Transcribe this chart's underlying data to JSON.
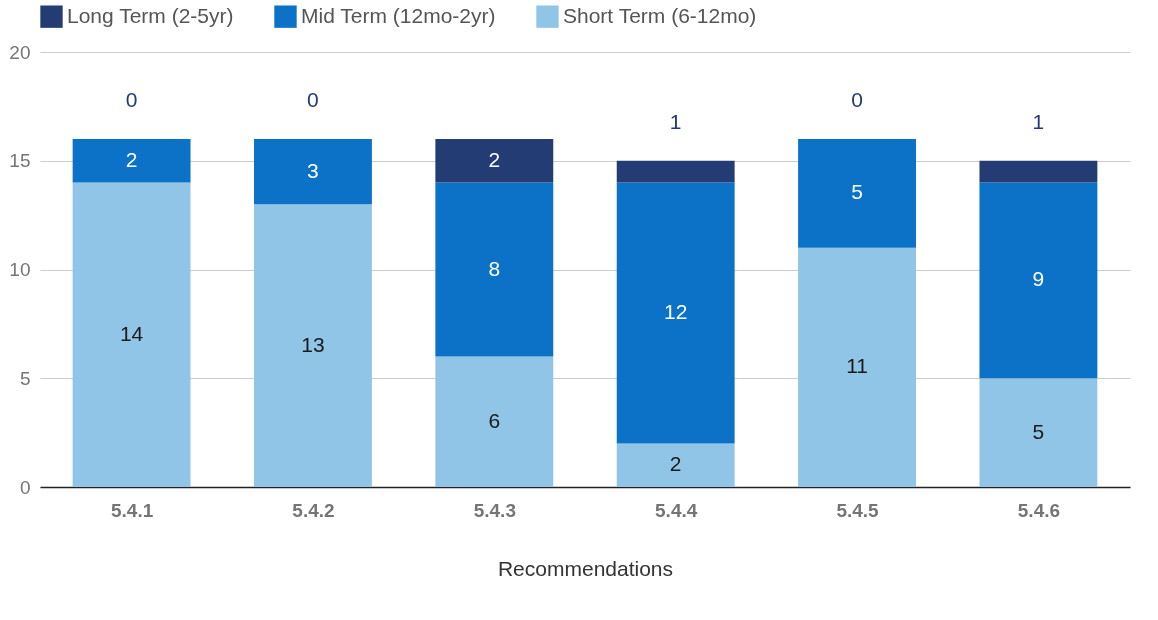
{
  "chart_data": {
    "type": "bar",
    "stacked": true,
    "xlabel": "Recommendations",
    "categories": [
      "5.4.1",
      "5.4.2",
      "5.4.3",
      "5.4.4",
      "5.4.5",
      "5.4.6"
    ],
    "series": [
      {
        "name": "Short Term (6-12mo)",
        "color": "#90c5e7",
        "values": [
          14,
          13,
          6,
          2,
          11,
          5
        ]
      },
      {
        "name": "Mid Term (12mo-2yr)",
        "color": "#0b72c7",
        "values": [
          2,
          3,
          8,
          12,
          5,
          9
        ]
      },
      {
        "name": "Long Term (2-5yr)",
        "color": "#243c74",
        "values": [
          0,
          0,
          2,
          1,
          0,
          1
        ]
      }
    ],
    "ylim": [
      0,
      20
    ],
    "yticks": [
      0,
      5,
      10,
      15,
      20
    ],
    "grid": "y",
    "legend": "top",
    "data_labels": true
  }
}
